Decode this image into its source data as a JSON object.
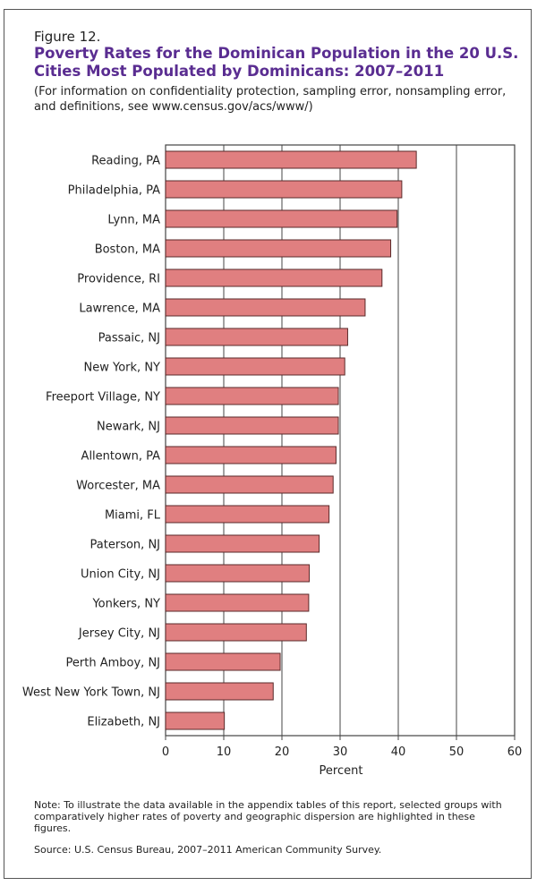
{
  "figure": {
    "label": "Figure 12.",
    "title": "Poverty Rates for the Dominican Population in the 20 U.S. Cities Most Populated by Dominicans: 2007–2011",
    "subtitle": "(For information on confidentiality protection, sampling error, nonsampling error, and definitions, see www.census.gov/acs/www/)",
    "note": "Note: To illustrate the data available in the appendix tables of this report, selected groups with comparatively higher rates of poverty and geographic dispersion are highlighted in these figures.",
    "source": "Source: U.S. Census Bureau, 2007–2011 American Community Survey."
  },
  "chart_data": {
    "type": "bar",
    "orientation": "horizontal",
    "categories": [
      "Reading, PA",
      "Philadelphia, PA",
      "Lynn, MA",
      "Boston, MA",
      "Providence, RI",
      "Lawrence, MA",
      "Passaic, NJ",
      "New York, NY",
      "Freeport Village, NY",
      "Newark, NJ",
      "Allentown, PA",
      "Worcester, MA",
      "Miami, FL",
      "Paterson, NJ",
      "Union City, NJ",
      "Yonkers, NY",
      "Jersey City, NJ",
      "Perth Amboy, NJ",
      "West New York Town, NJ",
      "Elizabeth, NJ"
    ],
    "values": [
      43.1,
      40.6,
      39.8,
      38.7,
      37.2,
      34.3,
      31.3,
      30.8,
      29.7,
      29.7,
      29.3,
      28.8,
      28.1,
      26.4,
      24.7,
      24.6,
      24.2,
      19.7,
      18.5,
      10.1
    ],
    "xlabel": "Percent",
    "xlim": [
      0,
      60
    ],
    "xticks": [
      "0",
      "10",
      "20",
      "30",
      "40",
      "50",
      "60"
    ],
    "grid": true,
    "colors": {
      "bar_fill": "#e07f80",
      "bar_stroke": "#5a2a2a",
      "grid": "#444444"
    }
  }
}
